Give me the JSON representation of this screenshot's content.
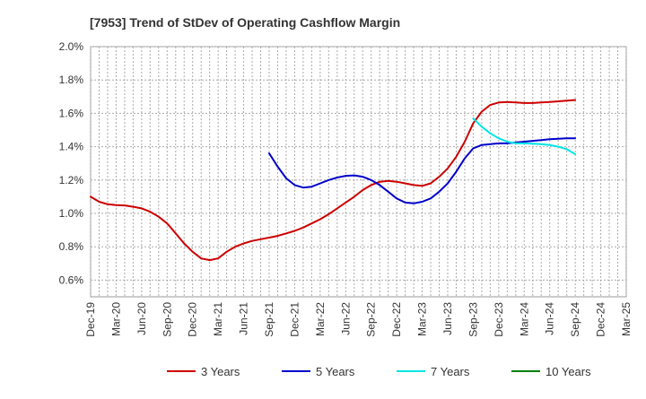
{
  "chart_data": {
    "type": "line",
    "title": "[7953]  Trend of StDev of Operating Cashflow Margin",
    "xlabel": "",
    "ylabel": "",
    "x_ticks": [
      "Dec-19",
      "Mar-20",
      "Jun-20",
      "Sep-20",
      "Dec-20",
      "Mar-21",
      "Jun-21",
      "Sep-21",
      "Dec-21",
      "Mar-22",
      "Jun-22",
      "Sep-22",
      "Dec-22",
      "Mar-23",
      "Jun-23",
      "Sep-23",
      "Dec-23",
      "Mar-24",
      "Jun-24",
      "Sep-24",
      "Dec-24",
      "Mar-25"
    ],
    "y_ticks": [
      "0.6%",
      "0.8%",
      "1.0%",
      "1.2%",
      "1.4%",
      "1.6%",
      "1.8%",
      "2.0%"
    ],
    "ylim": [
      0.5,
      2.0
    ],
    "grid": true,
    "legend_position": "bottom",
    "x_period": "month",
    "series": [
      {
        "name": "3 Years",
        "color": "#cc0000",
        "points": [
          [
            "2019-12",
            1.1
          ],
          [
            "2020-01",
            1.07
          ],
          [
            "2020-02",
            1.055
          ],
          [
            "2020-03",
            1.05
          ],
          [
            "2020-04",
            1.048
          ],
          [
            "2020-05",
            1.04
          ],
          [
            "2020-06",
            1.03
          ],
          [
            "2020-07",
            1.01
          ],
          [
            "2020-08",
            0.98
          ],
          [
            "2020-09",
            0.94
          ],
          [
            "2020-10",
            0.88
          ],
          [
            "2020-11",
            0.82
          ],
          [
            "2020-12",
            0.77
          ],
          [
            "2021-01",
            0.73
          ],
          [
            "2021-02",
            0.72
          ],
          [
            "2021-03",
            0.73
          ],
          [
            "2021-04",
            0.77
          ],
          [
            "2021-05",
            0.8
          ],
          [
            "2021-06",
            0.82
          ],
          [
            "2021-07",
            0.835
          ],
          [
            "2021-08",
            0.845
          ],
          [
            "2021-09",
            0.855
          ],
          [
            "2021-10",
            0.865
          ],
          [
            "2021-11",
            0.88
          ],
          [
            "2021-12",
            0.895
          ],
          [
            "2022-01",
            0.915
          ],
          [
            "2022-02",
            0.94
          ],
          [
            "2022-03",
            0.965
          ],
          [
            "2022-04",
            0.995
          ],
          [
            "2022-05",
            1.03
          ],
          [
            "2022-06",
            1.065
          ],
          [
            "2022-07",
            1.1
          ],
          [
            "2022-08",
            1.14
          ],
          [
            "2022-09",
            1.17
          ],
          [
            "2022-10",
            1.19
          ],
          [
            "2022-11",
            1.195
          ],
          [
            "2022-12",
            1.19
          ],
          [
            "2023-01",
            1.18
          ],
          [
            "2023-02",
            1.17
          ],
          [
            "2023-03",
            1.165
          ],
          [
            "2023-04",
            1.18
          ],
          [
            "2023-05",
            1.22
          ],
          [
            "2023-06",
            1.27
          ],
          [
            "2023-07",
            1.34
          ],
          [
            "2023-08",
            1.43
          ],
          [
            "2023-09",
            1.54
          ],
          [
            "2023-10",
            1.61
          ],
          [
            "2023-11",
            1.65
          ],
          [
            "2023-12",
            1.665
          ],
          [
            "2024-01",
            1.668
          ],
          [
            "2024-02",
            1.665
          ],
          [
            "2024-03",
            1.662
          ],
          [
            "2024-04",
            1.662
          ],
          [
            "2024-05",
            1.665
          ],
          [
            "2024-06",
            1.668
          ],
          [
            "2024-07",
            1.672
          ],
          [
            "2024-08",
            1.676
          ],
          [
            "2024-09",
            1.68
          ]
        ]
      },
      {
        "name": "5 Years",
        "color": "#0000cc",
        "points": [
          [
            "2021-09",
            1.36
          ],
          [
            "2021-10",
            1.28
          ],
          [
            "2021-11",
            1.21
          ],
          [
            "2021-12",
            1.17
          ],
          [
            "2022-01",
            1.155
          ],
          [
            "2022-02",
            1.16
          ],
          [
            "2022-03",
            1.18
          ],
          [
            "2022-04",
            1.2
          ],
          [
            "2022-05",
            1.215
          ],
          [
            "2022-06",
            1.225
          ],
          [
            "2022-07",
            1.228
          ],
          [
            "2022-08",
            1.22
          ],
          [
            "2022-09",
            1.2
          ],
          [
            "2022-10",
            1.17
          ],
          [
            "2022-11",
            1.13
          ],
          [
            "2022-12",
            1.09
          ],
          [
            "2023-01",
            1.065
          ],
          [
            "2023-02",
            1.06
          ],
          [
            "2023-03",
            1.07
          ],
          [
            "2023-04",
            1.09
          ],
          [
            "2023-05",
            1.13
          ],
          [
            "2023-06",
            1.18
          ],
          [
            "2023-07",
            1.25
          ],
          [
            "2023-08",
            1.33
          ],
          [
            "2023-09",
            1.39
          ],
          [
            "2023-10",
            1.41
          ],
          [
            "2023-11",
            1.415
          ],
          [
            "2023-12",
            1.42
          ],
          [
            "2024-01",
            1.42
          ],
          [
            "2024-02",
            1.425
          ],
          [
            "2024-03",
            1.43
          ],
          [
            "2024-04",
            1.435
          ],
          [
            "2024-05",
            1.44
          ],
          [
            "2024-06",
            1.445
          ],
          [
            "2024-07",
            1.448
          ],
          [
            "2024-08",
            1.45
          ],
          [
            "2024-09",
            1.45
          ]
        ]
      },
      {
        "name": "7 Years",
        "color": "#00e5e5",
        "points": [
          [
            "2023-09",
            1.57
          ],
          [
            "2023-10",
            1.52
          ],
          [
            "2023-11",
            1.48
          ],
          [
            "2023-12",
            1.45
          ],
          [
            "2024-01",
            1.43
          ],
          [
            "2024-02",
            1.42
          ],
          [
            "2024-03",
            1.42
          ],
          [
            "2024-04",
            1.418
          ],
          [
            "2024-05",
            1.415
          ],
          [
            "2024-06",
            1.41
          ],
          [
            "2024-07",
            1.4
          ],
          [
            "2024-08",
            1.385
          ],
          [
            "2024-09",
            1.355
          ]
        ]
      },
      {
        "name": "10 Years",
        "color": "#008000",
        "points": []
      }
    ]
  }
}
